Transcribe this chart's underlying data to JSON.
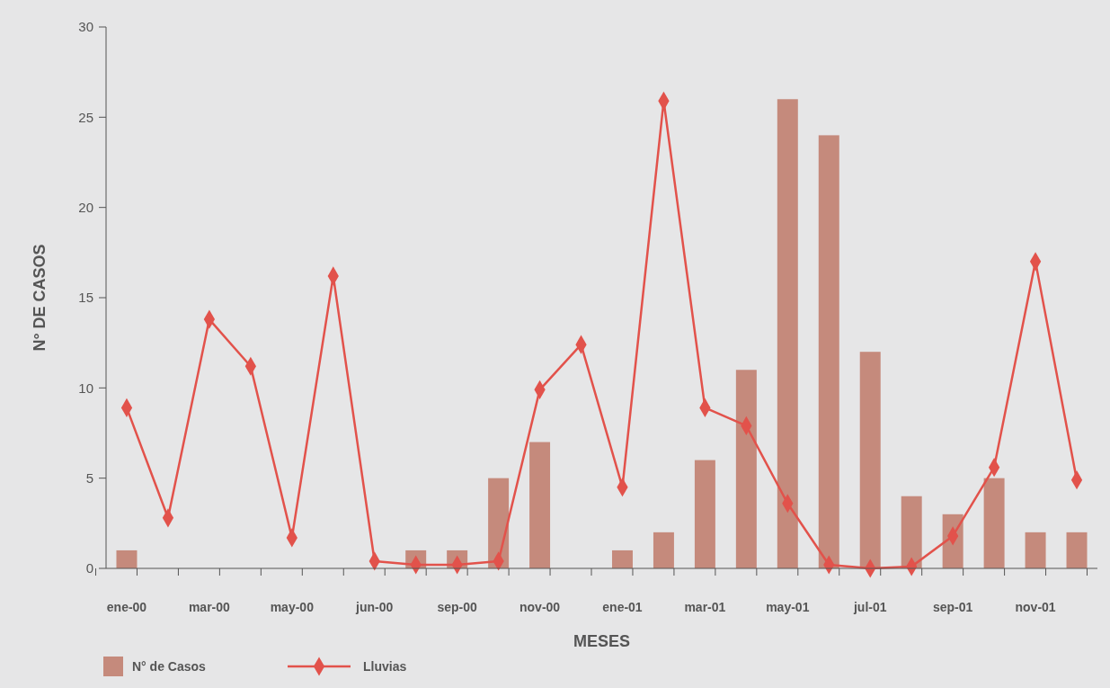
{
  "chart_data": {
    "type": "bar",
    "xlabel": "MESES",
    "ylabel": "N° DE CASOS",
    "categories": [
      "ene-00",
      null,
      "mar-00",
      null,
      "may-00",
      null,
      "jun-00",
      null,
      "sep-00",
      null,
      "nov-00",
      null,
      "ene-01",
      null,
      "mar-01",
      null,
      "may-01",
      null,
      "jul-01",
      null,
      "sep-01",
      null,
      "nov-01",
      null
    ],
    "series": [
      {
        "name": "N° de Casos",
        "color": "#c58a7c",
        "values": [
          1,
          0,
          0,
          0,
          0,
          0,
          0,
          1,
          1,
          5,
          7,
          0,
          1,
          2,
          6,
          11,
          26,
          24,
          12,
          4,
          3,
          5,
          2,
          2
        ]
      },
      {
        "name": "Lluvias",
        "type": "line",
        "color": "#e2524b",
        "marker": "diamond",
        "values": [
          8.9,
          2.8,
          13.8,
          11.2,
          1.7,
          16.2,
          0.4,
          0.2,
          0.2,
          0.4,
          9.9,
          12.4,
          4.5,
          25.9,
          8.9,
          7.9,
          3.6,
          0.2,
          0,
          0.1,
          1.8,
          5.6,
          17,
          4.9
        ]
      }
    ],
    "ylim": [
      0,
      30
    ],
    "yticks": [
      0,
      5,
      10,
      15,
      20,
      25,
      30
    ],
    "grid": false,
    "legend": "bottom left"
  }
}
